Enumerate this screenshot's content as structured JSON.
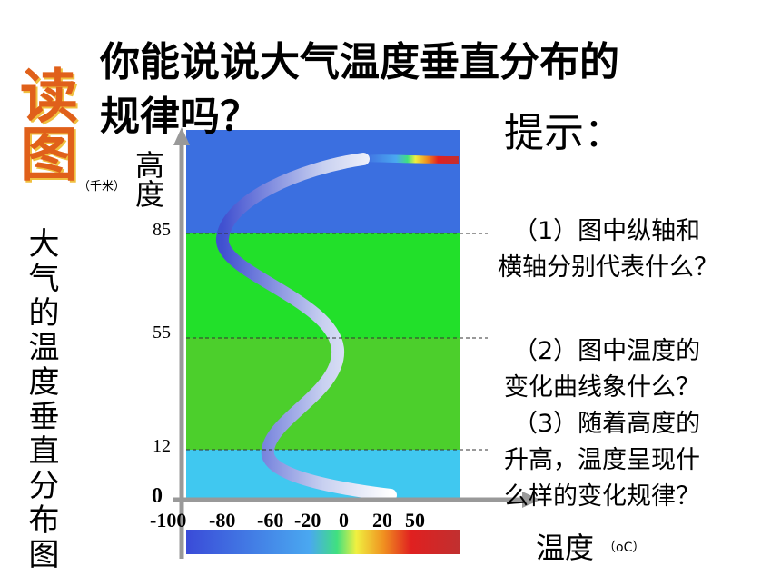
{
  "title_lines": [
    "你能说说大气温度垂直分布的",
    "规律吗？"
  ],
  "read_label": "读图",
  "side_caption": "大气的温度垂直分布图",
  "y_axis": {
    "label": "高度",
    "unit": "（千米）",
    "ticks": [
      "85",
      "55",
      "12",
      "0"
    ]
  },
  "x_axis": {
    "label": "温度",
    "unit": "（oC）",
    "ticks": [
      "-100",
      "-80",
      "-60",
      "-20",
      "0",
      "20",
      "50"
    ]
  },
  "hints": {
    "title": "提示：",
    "lines": [
      "（1）图中纵轴和",
      "横轴分别代表什么？",
      "（2）图中温度的",
      "变化曲线象什么？",
      "（3）随着高度的",
      "升高，温度呈现什",
      "么样的变化规律？"
    ]
  }
}
